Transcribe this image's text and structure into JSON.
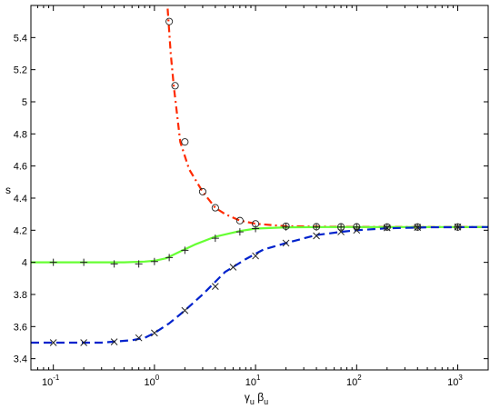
{
  "chart_data": {
    "type": "line",
    "xscale": "log",
    "xlim": [
      0.06,
      2000
    ],
    "ylim": [
      3.33,
      5.6
    ],
    "xlabel_main": "γ",
    "xlabel_sub1": "u",
    "xlabel_mid": " β",
    "xlabel_sub2": "u",
    "ylabel": "s",
    "x_ticks": [
      {
        "value": 0.1,
        "base": "10",
        "exp": "-1"
      },
      {
        "value": 1,
        "base": "10",
        "exp": "0"
      },
      {
        "value": 10,
        "base": "10",
        "exp": "1"
      },
      {
        "value": 100,
        "base": "10",
        "exp": "2"
      },
      {
        "value": 1000,
        "base": "10",
        "exp": "3"
      }
    ],
    "y_ticks": [
      {
        "value": 3.4,
        "label": "3.4"
      },
      {
        "value": 3.6,
        "label": "3.6"
      },
      {
        "value": 3.8,
        "label": "3.8"
      },
      {
        "value": 4.0,
        "label": "4"
      },
      {
        "value": 4.2,
        "label": "4.2"
      },
      {
        "value": 4.4,
        "label": "4.4"
      },
      {
        "value": 4.6,
        "label": "4.6"
      },
      {
        "value": 4.8,
        "label": "4.8"
      },
      {
        "value": 5.0,
        "label": "5"
      },
      {
        "value": 5.2,
        "label": "5.2"
      },
      {
        "value": 5.4,
        "label": "5.4"
      }
    ],
    "series": [
      {
        "style": "dash-dot",
        "color": "#ff2a00",
        "marker": "circle",
        "curve": [
          [
            1.35,
            5.58
          ],
          [
            1.45,
            5.3
          ],
          [
            1.55,
            5.1
          ],
          [
            1.8,
            4.75
          ],
          [
            2.2,
            4.58
          ],
          [
            3,
            4.44
          ],
          [
            4,
            4.34
          ],
          [
            5,
            4.3
          ],
          [
            7,
            4.26
          ],
          [
            10,
            4.24
          ],
          [
            20,
            4.225
          ],
          [
            50,
            4.222
          ],
          [
            100,
            4.221
          ],
          [
            2000,
            4.22
          ]
        ],
        "points": [
          [
            1.4,
            5.5
          ],
          [
            1.6,
            5.1
          ],
          [
            2,
            4.75
          ],
          [
            3,
            4.44
          ],
          [
            4,
            4.34
          ],
          [
            7,
            4.26
          ],
          [
            10,
            4.24
          ],
          [
            20,
            4.225
          ],
          [
            40,
            4.222
          ],
          [
            70,
            4.221
          ],
          [
            100,
            4.221
          ],
          [
            200,
            4.22
          ],
          [
            400,
            4.22
          ],
          [
            1000,
            4.22
          ]
        ]
      },
      {
        "style": "solid",
        "color": "#66ff33",
        "marker": "plus",
        "curve": [
          [
            0.06,
            4.0
          ],
          [
            0.5,
            4.0
          ],
          [
            0.8,
            4.005
          ],
          [
            1,
            4.01
          ],
          [
            1.3,
            4.025
          ],
          [
            1.7,
            4.06
          ],
          [
            2.5,
            4.11
          ],
          [
            4,
            4.16
          ],
          [
            7,
            4.195
          ],
          [
            10,
            4.21
          ],
          [
            20,
            4.218
          ],
          [
            50,
            4.22
          ],
          [
            2000,
            4.22
          ]
        ],
        "points": [
          [
            0.1,
            4.0
          ],
          [
            0.2,
            4.0
          ],
          [
            0.4,
            3.99
          ],
          [
            0.7,
            3.99
          ],
          [
            1,
            4.005
          ],
          [
            1.4,
            4.03
          ],
          [
            2,
            4.075
          ],
          [
            4,
            4.15
          ],
          [
            7,
            4.19
          ],
          [
            10,
            4.21
          ],
          [
            20,
            4.22
          ],
          [
            40,
            4.22
          ],
          [
            70,
            4.22
          ],
          [
            100,
            4.22
          ],
          [
            200,
            4.22
          ],
          [
            400,
            4.22
          ],
          [
            1000,
            4.22
          ]
        ]
      },
      {
        "style": "dashed",
        "color": "#0022cc",
        "marker": "cross",
        "curve": [
          [
            0.06,
            3.5
          ],
          [
            0.3,
            3.5
          ],
          [
            0.6,
            3.515
          ],
          [
            0.8,
            3.53
          ],
          [
            1,
            3.56
          ],
          [
            1.4,
            3.62
          ],
          [
            2,
            3.7
          ],
          [
            3,
            3.8
          ],
          [
            5,
            3.94
          ],
          [
            8,
            4.02
          ],
          [
            12,
            4.08
          ],
          [
            20,
            4.12
          ],
          [
            40,
            4.17
          ],
          [
            70,
            4.19
          ],
          [
            100,
            4.2
          ],
          [
            200,
            4.212
          ],
          [
            500,
            4.218
          ],
          [
            2000,
            4.22
          ]
        ],
        "points": [
          [
            0.1,
            3.5
          ],
          [
            0.2,
            3.5
          ],
          [
            0.4,
            3.505
          ],
          [
            0.7,
            3.53
          ],
          [
            1,
            3.56
          ],
          [
            2,
            3.7
          ],
          [
            4,
            3.85
          ],
          [
            6,
            3.97
          ],
          [
            10,
            4.04
          ],
          [
            20,
            4.12
          ],
          [
            40,
            4.165
          ],
          [
            70,
            4.19
          ],
          [
            100,
            4.2
          ],
          [
            200,
            4.215
          ],
          [
            400,
            4.218
          ],
          [
            1000,
            4.22
          ]
        ]
      }
    ]
  }
}
